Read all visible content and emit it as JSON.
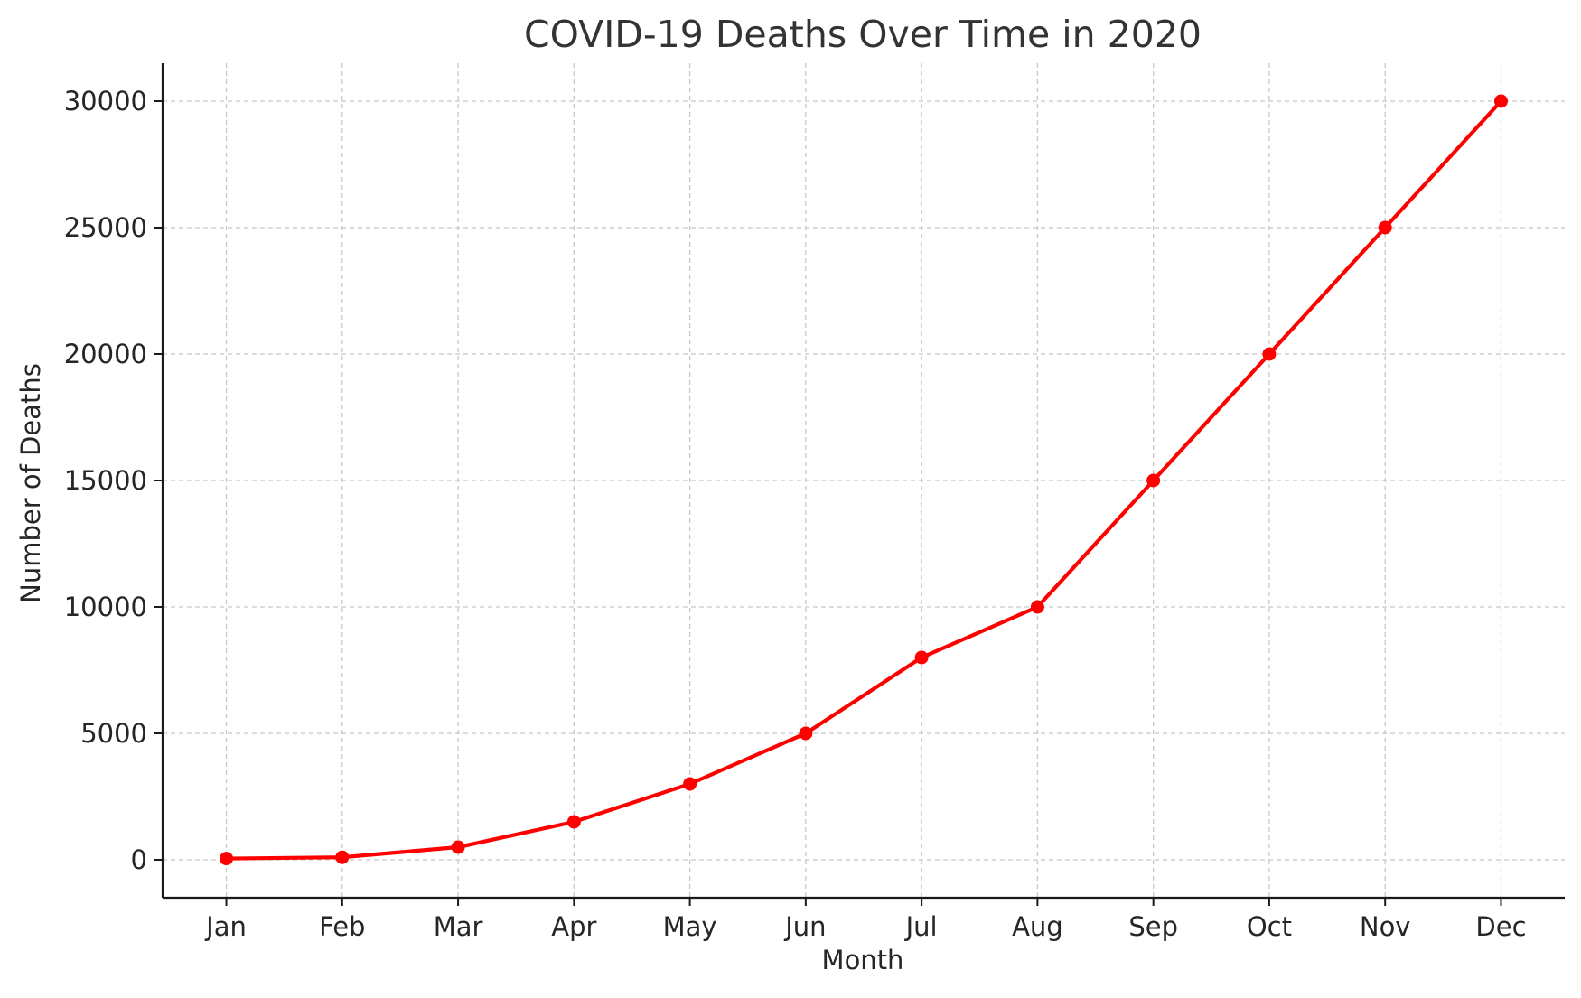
{
  "chart_data": {
    "type": "line",
    "title": "COVID-19 Deaths Over Time in 2020",
    "xlabel": "Month",
    "ylabel": "Number of Deaths",
    "categories": [
      "Jan",
      "Feb",
      "Mar",
      "Apr",
      "May",
      "Jun",
      "Jul",
      "Aug",
      "Sep",
      "Oct",
      "Nov",
      "Dec"
    ],
    "series": [
      {
        "values": [
          50,
          100,
          500,
          1500,
          3000,
          5000,
          8000,
          10000,
          15000,
          20000,
          25000,
          30000
        ],
        "color": "#ff0000",
        "marker": "circle"
      }
    ],
    "ylim": [
      -1500,
      31500
    ],
    "yticks": [
      0,
      5000,
      10000,
      15000,
      20000,
      25000,
      30000
    ],
    "grid": true,
    "grid_style": "dashed",
    "grid_color": "#c8c8c8",
    "legend": "none"
  }
}
